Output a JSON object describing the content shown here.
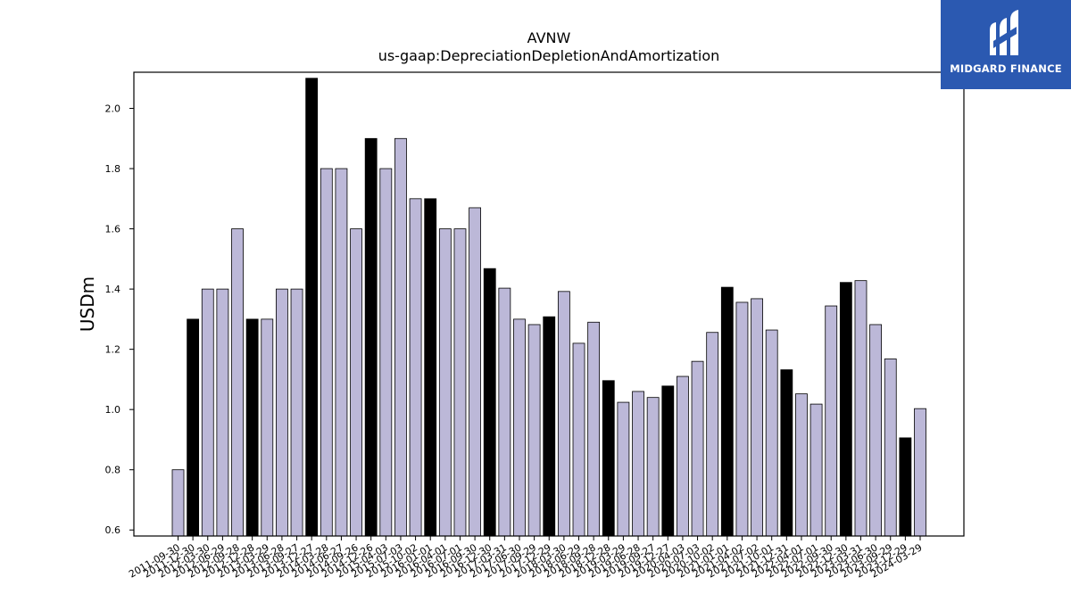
{
  "brand": {
    "name": "MIDGARD FINANCE",
    "background": "#2b59b1",
    "icon": "midgard-logo-icon"
  },
  "colors": {
    "bar_default": "#bcb8d8",
    "bar_highlight": "#000000",
    "bar_edge": "#000000"
  },
  "chart_data": {
    "type": "bar",
    "title": "AVNW",
    "subtitle": "us-gaap:DepreciationDepletionAndAmortization",
    "xlabel": "",
    "ylabel": "USDm",
    "ylim": [
      0.58,
      2.12
    ],
    "yticks": [
      "0.6",
      "0.8",
      "1.0",
      "1.2",
      "1.4",
      "1.6",
      "1.8",
      "2.0"
    ],
    "grid": false,
    "legend": "none",
    "categories": [
      "2011-09-30",
      "2011-12-30",
      "2012-03-30",
      "2012-06-29",
      "2012-09-28",
      "2012-12-28",
      "2013-03-29",
      "2013-06-28",
      "2013-09-27",
      "2013-12-27",
      "2014-03-28",
      "2014-06-27",
      "2014-09-26",
      "2014-12-26",
      "2015-04-03",
      "2015-07-03",
      "2015-10-02",
      "2016-01-01",
      "2016-04-01",
      "2016-07-01",
      "2016-09-30",
      "2016-12-30",
      "2017-03-31",
      "2017-06-30",
      "2017-09-29",
      "2017-12-29",
      "2018-03-30",
      "2018-06-29",
      "2018-09-28",
      "2018-12-28",
      "2019-03-29",
      "2019-06-28",
      "2019-09-27",
      "2019-12-27",
      "2020-04-03",
      "2020-07-03",
      "2020-10-02",
      "2021-01-01",
      "2021-04-02",
      "2021-07-02",
      "2021-10-01",
      "2021-12-31",
      "2022-04-01",
      "2022-07-01",
      "2022-09-30",
      "2022-12-30",
      "2023-03-31",
      "2023-06-30",
      "2023-09-29",
      "2023-12-29",
      "2024-03-29"
    ],
    "values": [
      0.8,
      1.3,
      1.4,
      1.4,
      1.6,
      1.3,
      1.3,
      1.4,
      1.4,
      2.1,
      1.8,
      1.8,
      1.6,
      1.9,
      1.8,
      1.9,
      1.7,
      1.7,
      1.6,
      1.6,
      1.67,
      1.468,
      1.403,
      1.3,
      1.282,
      1.308,
      1.392,
      1.22,
      1.29,
      1.096,
      1.024,
      1.06,
      1.04,
      1.078,
      1.11,
      1.16,
      1.256,
      1.406,
      1.356,
      1.368,
      1.264,
      1.132,
      1.052,
      1.018,
      1.344,
      1.422,
      1.428,
      1.282,
      1.168,
      0.906,
      1.003
    ],
    "highlight": [
      false,
      true,
      false,
      false,
      false,
      true,
      false,
      false,
      false,
      true,
      false,
      false,
      false,
      true,
      false,
      false,
      false,
      true,
      false,
      false,
      false,
      true,
      false,
      false,
      false,
      true,
      false,
      false,
      false,
      true,
      false,
      false,
      false,
      true,
      false,
      false,
      false,
      true,
      false,
      false,
      false,
      true,
      false,
      false,
      false,
      true,
      false,
      false,
      false,
      true,
      false
    ]
  }
}
